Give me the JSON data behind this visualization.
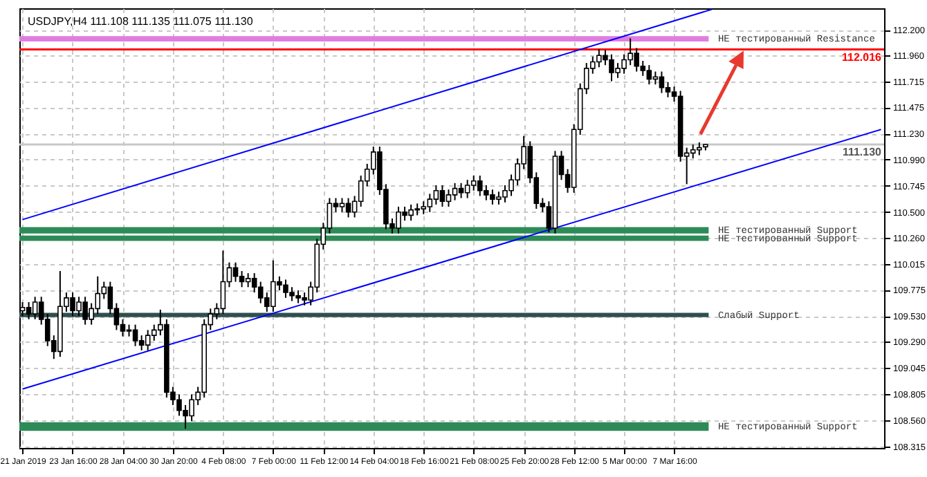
{
  "chart_data": {
    "type": "candlestick",
    "title": "USDJPY,H4  111.108 111.135 111.075 111.130",
    "categories": [
      "21 Jan 2019",
      null,
      null,
      null,
      null,
      null,
      null,
      null,
      "23 Jan 16:00",
      null,
      null,
      null,
      null,
      null,
      null,
      null,
      "28 Jan 04:00",
      null,
      null,
      null,
      null,
      null,
      null,
      null,
      "30 Jan 20:00",
      null,
      null,
      null,
      null,
      null,
      null,
      null,
      "4 Feb 08:00",
      null,
      null,
      null,
      null,
      null,
      null,
      null,
      "7 Feb 00:00",
      null,
      null,
      null,
      null,
      null,
      null,
      null,
      "11 Feb 12:00",
      null,
      null,
      null,
      null,
      null,
      null,
      null,
      "14 Feb 04:00",
      null,
      null,
      null,
      null,
      null,
      null,
      null,
      "18 Feb 16:00",
      null,
      null,
      null,
      null,
      null,
      null,
      null,
      "21 Feb 08:00",
      null,
      null,
      null,
      null,
      null,
      null,
      null,
      "25 Feb 20:00",
      null,
      null,
      null,
      null,
      null,
      null,
      null,
      "28 Feb 12:00",
      null,
      null,
      null,
      null,
      null,
      null,
      null,
      "5 Mar 00:00",
      null,
      null,
      null,
      null,
      null,
      null,
      null,
      "7 Mar 16:00",
      null,
      null,
      null,
      null,
      null,
      null,
      null,
      null,
      null,
      null,
      null,
      null,
      null,
      null,
      null,
      null,
      null,
      null,
      null,
      null,
      null,
      null,
      null,
      null,
      null,
      null,
      null,
      null,
      null,
      null,
      null,
      null,
      null
    ],
    "ohlc": [
      [
        109.58,
        109.66,
        109.53,
        109.61
      ],
      [
        109.61,
        109.66,
        109.5,
        109.55
      ],
      [
        109.55,
        109.71,
        109.5,
        109.66
      ],
      [
        109.66,
        109.71,
        109.45,
        109.5
      ],
      [
        109.5,
        109.55,
        109.25,
        109.3
      ],
      [
        109.3,
        109.35,
        109.13,
        109.2
      ],
      [
        109.2,
        109.95,
        109.15,
        109.62
      ],
      [
        109.62,
        109.75,
        109.57,
        109.7
      ],
      [
        109.7,
        109.75,
        109.53,
        109.58
      ],
      [
        109.58,
        109.71,
        109.53,
        109.66
      ],
      [
        109.66,
        109.71,
        109.45,
        109.5
      ],
      [
        109.5,
        109.65,
        109.45,
        109.6
      ],
      [
        109.6,
        109.9,
        109.55,
        109.74
      ],
      [
        109.74,
        109.85,
        109.69,
        109.8
      ],
      [
        109.8,
        109.85,
        109.55,
        109.6
      ],
      [
        109.6,
        109.65,
        109.4,
        109.45
      ],
      [
        109.45,
        109.5,
        109.34,
        109.39
      ],
      [
        109.39,
        109.45,
        109.34,
        109.4
      ],
      [
        109.4,
        109.45,
        109.25,
        109.3
      ],
      [
        109.3,
        109.35,
        109.21,
        109.26
      ],
      [
        109.26,
        109.4,
        109.21,
        109.35
      ],
      [
        109.35,
        109.45,
        109.3,
        109.4
      ],
      [
        109.4,
        109.59,
        109.35,
        109.45
      ],
      [
        109.45,
        109.5,
        108.77,
        108.82
      ],
      [
        108.82,
        108.87,
        108.7,
        108.75
      ],
      [
        108.75,
        108.8,
        108.6,
        108.65
      ],
      [
        108.65,
        108.7,
        108.48,
        108.6
      ],
      [
        108.6,
        108.8,
        108.55,
        108.75
      ],
      [
        108.75,
        108.87,
        108.7,
        108.82
      ],
      [
        108.82,
        109.5,
        108.77,
        109.45
      ],
      [
        109.45,
        109.6,
        109.4,
        109.55
      ],
      [
        109.55,
        109.65,
        109.5,
        109.6
      ],
      [
        109.6,
        110.14,
        109.55,
        109.85
      ],
      [
        109.85,
        110.03,
        109.8,
        109.98
      ],
      [
        109.98,
        110.03,
        109.85,
        109.9
      ],
      [
        109.9,
        109.95,
        109.8,
        109.85
      ],
      [
        109.85,
        109.93,
        109.8,
        109.88
      ],
      [
        109.88,
        109.93,
        109.75,
        109.8
      ],
      [
        109.8,
        109.85,
        109.65,
        109.7
      ],
      [
        109.7,
        109.75,
        109.57,
        109.62
      ],
      [
        109.62,
        110.05,
        109.57,
        109.85
      ],
      [
        109.85,
        109.9,
        109.77,
        109.82
      ],
      [
        109.82,
        109.87,
        109.7,
        109.75
      ],
      [
        109.75,
        109.8,
        109.67,
        109.72
      ],
      [
        109.72,
        109.77,
        109.65,
        109.7
      ],
      [
        109.7,
        109.75,
        109.63,
        109.68
      ],
      [
        109.68,
        109.85,
        109.63,
        109.8
      ],
      [
        109.8,
        110.25,
        109.75,
        110.2
      ],
      [
        110.2,
        110.4,
        110.15,
        110.35
      ],
      [
        110.35,
        110.63,
        110.3,
        110.58
      ],
      [
        110.58,
        110.63,
        110.5,
        110.55
      ],
      [
        110.55,
        110.63,
        110.5,
        110.58
      ],
      [
        110.58,
        110.63,
        110.45,
        110.5
      ],
      [
        110.5,
        110.65,
        110.45,
        110.6
      ],
      [
        110.6,
        110.84,
        110.55,
        110.79
      ],
      [
        110.79,
        110.95,
        110.74,
        110.9
      ],
      [
        110.9,
        111.11,
        110.85,
        111.06
      ],
      [
        111.06,
        111.11,
        110.66,
        110.71
      ],
      [
        110.71,
        110.76,
        110.34,
        110.39
      ],
      [
        110.39,
        110.44,
        110.3,
        110.35
      ],
      [
        110.35,
        110.55,
        110.3,
        110.5
      ],
      [
        110.5,
        110.55,
        110.42,
        110.47
      ],
      [
        110.47,
        110.57,
        110.42,
        110.52
      ],
      [
        110.52,
        110.58,
        110.47,
        110.53
      ],
      [
        110.53,
        110.6,
        110.48,
        110.55
      ],
      [
        110.55,
        110.67,
        110.5,
        110.62
      ],
      [
        110.62,
        110.75,
        110.57,
        110.7
      ],
      [
        110.7,
        110.75,
        110.55,
        110.6
      ],
      [
        110.6,
        110.71,
        110.55,
        110.66
      ],
      [
        110.66,
        110.77,
        110.61,
        110.72
      ],
      [
        110.72,
        110.77,
        110.63,
        110.68
      ],
      [
        110.68,
        110.8,
        110.63,
        110.75
      ],
      [
        110.75,
        110.84,
        110.7,
        110.79
      ],
      [
        110.79,
        110.84,
        110.65,
        110.7
      ],
      [
        110.7,
        110.75,
        110.61,
        110.66
      ],
      [
        110.66,
        110.71,
        110.57,
        110.62
      ],
      [
        110.62,
        110.69,
        110.57,
        110.64
      ],
      [
        110.64,
        110.75,
        110.59,
        110.7
      ],
      [
        110.7,
        110.85,
        110.65,
        110.8
      ],
      [
        110.8,
        111.0,
        110.75,
        110.95
      ],
      [
        110.95,
        111.21,
        110.9,
        111.11
      ],
      [
        111.11,
        111.16,
        110.77,
        110.82
      ],
      [
        110.82,
        110.87,
        110.53,
        110.58
      ],
      [
        110.58,
        110.63,
        110.5,
        110.55
      ],
      [
        110.55,
        110.6,
        110.31,
        110.35
      ],
      [
        110.35,
        111.07,
        110.3,
        111.02
      ],
      [
        111.02,
        111.07,
        110.8,
        110.85
      ],
      [
        110.85,
        110.9,
        110.68,
        110.73
      ],
      [
        110.73,
        111.32,
        110.68,
        111.27
      ],
      [
        111.27,
        111.7,
        111.22,
        111.65
      ],
      [
        111.65,
        111.89,
        111.6,
        111.84
      ],
      [
        111.84,
        111.95,
        111.79,
        111.9
      ],
      [
        111.9,
        112.02,
        111.85,
        111.96
      ],
      [
        111.96,
        112.01,
        111.87,
        111.92
      ],
      [
        111.92,
        111.97,
        111.72,
        111.8
      ],
      [
        111.8,
        111.89,
        111.75,
        111.84
      ],
      [
        111.84,
        111.97,
        111.79,
        111.92
      ],
      [
        111.92,
        112.12,
        111.87,
        111.98
      ],
      [
        111.98,
        112.03,
        111.81,
        111.86
      ],
      [
        111.86,
        111.91,
        111.77,
        111.82
      ],
      [
        111.82,
        111.87,
        111.69,
        111.74
      ],
      [
        111.74,
        111.81,
        111.69,
        111.76
      ],
      [
        111.76,
        111.81,
        111.61,
        111.66
      ],
      [
        111.66,
        111.71,
        111.57,
        111.62
      ],
      [
        111.62,
        111.67,
        111.53,
        111.58
      ],
      [
        111.58,
        111.63,
        110.97,
        111.02
      ],
      [
        111.02,
        111.1,
        110.76,
        111.05
      ],
      [
        111.05,
        111.13,
        111.0,
        111.08
      ],
      [
        111.08,
        111.15,
        111.03,
        111.1
      ],
      [
        111.108,
        111.135,
        111.075,
        111.13
      ],
      null,
      null,
      null,
      null,
      null,
      null,
      null,
      null,
      null,
      null,
      null,
      null,
      null,
      null,
      null,
      null,
      null,
      null,
      null,
      null,
      null,
      null,
      null,
      null,
      null,
      null,
      null,
      null
    ],
    "series": [
      {
        "type": "line",
        "color": "#0000ff",
        "values": [
          110.43,
          null,
          null,
          null,
          null,
          null,
          null,
          null,
          null,
          null,
          null,
          null,
          null,
          null,
          null,
          null,
          null,
          null,
          null,
          null,
          null,
          null,
          null,
          null,
          null,
          null,
          null,
          null,
          null,
          null,
          null,
          null,
          null,
          null,
          null,
          null,
          null,
          null,
          null,
          null,
          null,
          null,
          null,
          null,
          null,
          null,
          null,
          null,
          null,
          null,
          null,
          null,
          null,
          null,
          null,
          null,
          null,
          null,
          null,
          null,
          null,
          null,
          null,
          null,
          null,
          null,
          null,
          null,
          null,
          null,
          null,
          null,
          null,
          null,
          null,
          null,
          null,
          null,
          null,
          null,
          null,
          null,
          null,
          null,
          null,
          null,
          null,
          null,
          null,
          null,
          null,
          null,
          null,
          null,
          null,
          null,
          null,
          null,
          null,
          null,
          null,
          null,
          null,
          null,
          null,
          null,
          null,
          null,
          null,
          null,
          112.39,
          null,
          null,
          null,
          null,
          null,
          null,
          null,
          null,
          null,
          null,
          null,
          null,
          null,
          null,
          null,
          null,
          null,
          null,
          null,
          null,
          null,
          null,
          null,
          null,
          null,
          null,
          null
        ]
      },
      {
        "type": "line",
        "color": "#0000ff",
        "values": [
          108.85,
          null,
          null,
          null,
          null,
          null,
          null,
          null,
          null,
          null,
          null,
          null,
          null,
          null,
          null,
          null,
          null,
          null,
          null,
          null,
          null,
          null,
          null,
          null,
          null,
          null,
          null,
          null,
          null,
          null,
          null,
          null,
          null,
          null,
          null,
          null,
          null,
          null,
          null,
          null,
          null,
          null,
          null,
          null,
          null,
          null,
          null,
          null,
          null,
          null,
          null,
          null,
          null,
          null,
          null,
          null,
          null,
          null,
          null,
          null,
          null,
          null,
          null,
          null,
          null,
          null,
          null,
          null,
          null,
          null,
          null,
          null,
          null,
          null,
          null,
          null,
          null,
          null,
          null,
          null,
          null,
          null,
          null,
          null,
          null,
          null,
          null,
          null,
          null,
          null,
          null,
          null,
          null,
          null,
          null,
          null,
          null,
          null,
          null,
          null,
          null,
          null,
          null,
          null,
          null,
          null,
          null,
          null,
          null,
          null,
          null,
          null,
          null,
          null,
          null,
          null,
          null,
          null,
          null,
          null,
          null,
          null,
          null,
          null,
          null,
          null,
          null,
          null,
          null,
          null,
          null,
          null,
          null,
          null,
          null,
          null,
          null,
          111.27
        ]
      }
    ],
    "ylim": [
      108.3,
      112.4
    ],
    "yticks": [
      {
        "value": 112.2,
        "label": "112.200"
      },
      {
        "value": 111.96,
        "label": "111.960"
      },
      {
        "value": 111.715,
        "label": "111.715"
      },
      {
        "value": 111.475,
        "label": "111.475"
      },
      {
        "value": 111.23,
        "label": "111.230"
      },
      {
        "value": 110.99,
        "label": "110.990"
      },
      {
        "value": 110.745,
        "label": "110.745"
      },
      {
        "value": 110.5,
        "label": "110.500"
      },
      {
        "value": 110.26,
        "label": "110.260"
      },
      {
        "value": 110.015,
        "label": "110.015"
      },
      {
        "value": 109.775,
        "label": "109.775"
      },
      {
        "value": 109.53,
        "label": "109.530"
      },
      {
        "value": 109.29,
        "label": "109.290"
      },
      {
        "value": 109.045,
        "label": "109.045"
      },
      {
        "value": 108.805,
        "label": "108.805"
      },
      {
        "value": 108.56,
        "label": "108.560"
      },
      {
        "value": 108.315,
        "label": "108.315"
      }
    ],
    "grid": true,
    "bands": [
      {
        "axis": "y",
        "from": 112.09,
        "to": 112.14,
        "label": "НЕ тестированный Resistance",
        "color": "#e07ee0"
      },
      {
        "axis": "y",
        "from": 110.3,
        "to": 110.36,
        "label": "НЕ тестированный Support",
        "color": "#2e8b57"
      },
      {
        "axis": "y",
        "from": 110.23,
        "to": 110.28,
        "label": "НЕ тестированный Support",
        "color": "#2e8b57"
      },
      {
        "axis": "y",
        "from": 109.52,
        "to": 109.56,
        "label": "Слабый Support",
        "color": "#2f4f4f"
      },
      {
        "axis": "y",
        "from": 108.46,
        "to": 108.54,
        "label": "НЕ тестированный Support",
        "color": "#2e8b57"
      }
    ],
    "ref_lines": [
      {
        "axis": "y",
        "value": 112.016,
        "label": "112.016",
        "color": "#ff0000"
      },
      {
        "axis": "y",
        "value": 111.13,
        "label": "111.130",
        "color": "#c8c8c8"
      }
    ]
  }
}
